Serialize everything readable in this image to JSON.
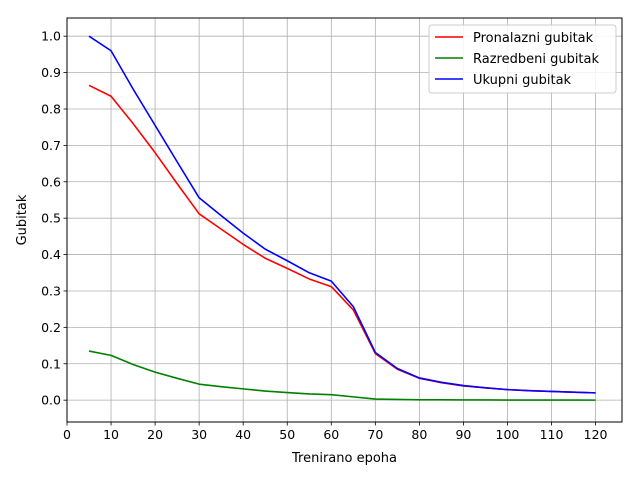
{
  "chart_data": {
    "type": "line",
    "title": "",
    "xlabel": "Trenirano epoha",
    "ylabel": "Gubitak",
    "xlim": [
      0,
      126
    ],
    "ylim": [
      -0.06,
      1.05
    ],
    "xticks": [
      0,
      10,
      20,
      30,
      40,
      50,
      60,
      70,
      80,
      90,
      100,
      110,
      120
    ],
    "yticks": [
      0.0,
      0.1,
      0.2,
      0.3,
      0.4,
      0.5,
      0.6,
      0.7,
      0.8,
      0.9,
      1.0
    ],
    "xtick_labels": [
      "0",
      "10",
      "20",
      "30",
      "40",
      "50",
      "60",
      "70",
      "80",
      "90",
      "100",
      "110",
      "120"
    ],
    "ytick_labels": [
      "0.0",
      "0.1",
      "0.2",
      "0.3",
      "0.4",
      "0.5",
      "0.6",
      "0.7",
      "0.8",
      "0.9",
      "1.0"
    ],
    "grid": true,
    "legend_position": "top-right",
    "x": [
      5,
      10,
      15,
      20,
      25,
      30,
      35,
      40,
      45,
      50,
      55,
      60,
      65,
      70,
      75,
      80,
      85,
      90,
      95,
      100,
      105,
      110,
      115,
      120
    ],
    "series": [
      {
        "name": "Pronalazni gubitak",
        "color": "#ff0000",
        "values": [
          0.865,
          0.835,
          0.76,
          0.68,
          0.595,
          0.512,
          0.47,
          0.428,
          0.39,
          0.362,
          0.333,
          0.312,
          0.248,
          0.128,
          0.085,
          0.06,
          0.048,
          0.039,
          0.034,
          0.029,
          0.026,
          0.024,
          0.022,
          0.02
        ]
      },
      {
        "name": "Razredbeni gubitak",
        "color": "#008000",
        "values": [
          0.135,
          0.123,
          0.098,
          0.077,
          0.06,
          0.044,
          0.037,
          0.031,
          0.025,
          0.021,
          0.017,
          0.015,
          0.009,
          0.003,
          0.002,
          0.001,
          0.001,
          0.0005,
          0.0005,
          0.0003,
          0.0003,
          0.0002,
          0.0002,
          0.0001
        ]
      },
      {
        "name": "Ukupni gubitak",
        "color": "#0000ff",
        "values": [
          1.0,
          0.96,
          0.855,
          0.755,
          0.655,
          0.556,
          0.507,
          0.459,
          0.415,
          0.383,
          0.35,
          0.327,
          0.257,
          0.131,
          0.087,
          0.061,
          0.049,
          0.04,
          0.034,
          0.029,
          0.026,
          0.024,
          0.022,
          0.02
        ]
      }
    ]
  }
}
